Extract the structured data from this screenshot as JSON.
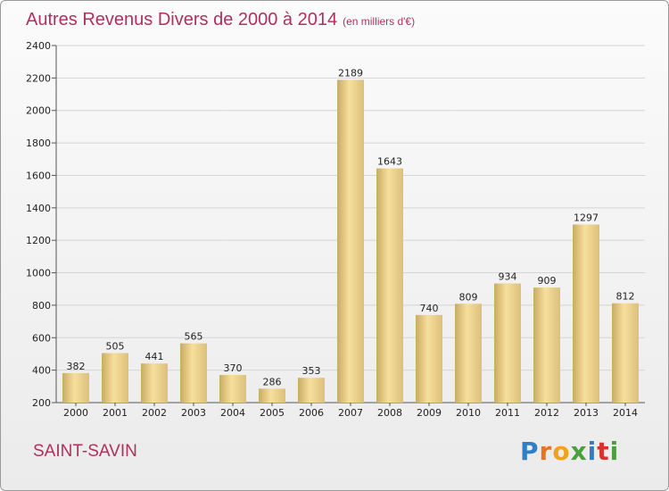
{
  "header": {
    "title": "Autres Revenus Divers de 2000 à 2014",
    "unit": "(en milliers d'€)"
  },
  "footer": {
    "place": "SAINT-SAVIN",
    "logo_letters": [
      "P",
      "r",
      "o",
      "x",
      "i",
      "t",
      "i"
    ]
  },
  "colors": {
    "title": "#b0305a",
    "bar_light": "#f6df9c",
    "bar_dark": "#c8aa63"
  },
  "chart_data": {
    "type": "bar",
    "title": "Autres Revenus Divers de 2000 à 2014",
    "subtitle": "(en milliers d'€)",
    "categories": [
      "2000",
      "2001",
      "2002",
      "2003",
      "2004",
      "2005",
      "2006",
      "2007",
      "2008",
      "2009",
      "2010",
      "2011",
      "2012",
      "2013",
      "2014"
    ],
    "values": [
      382,
      505,
      441,
      565,
      370,
      286,
      353,
      2189,
      1643,
      740,
      809,
      934,
      909,
      1297,
      812
    ],
    "ylim": [
      200,
      2400
    ],
    "yticks": [
      200,
      400,
      600,
      800,
      1000,
      1200,
      1400,
      1600,
      1800,
      2000,
      2200,
      2400
    ],
    "grid": true,
    "xlabel": "",
    "ylabel": ""
  }
}
